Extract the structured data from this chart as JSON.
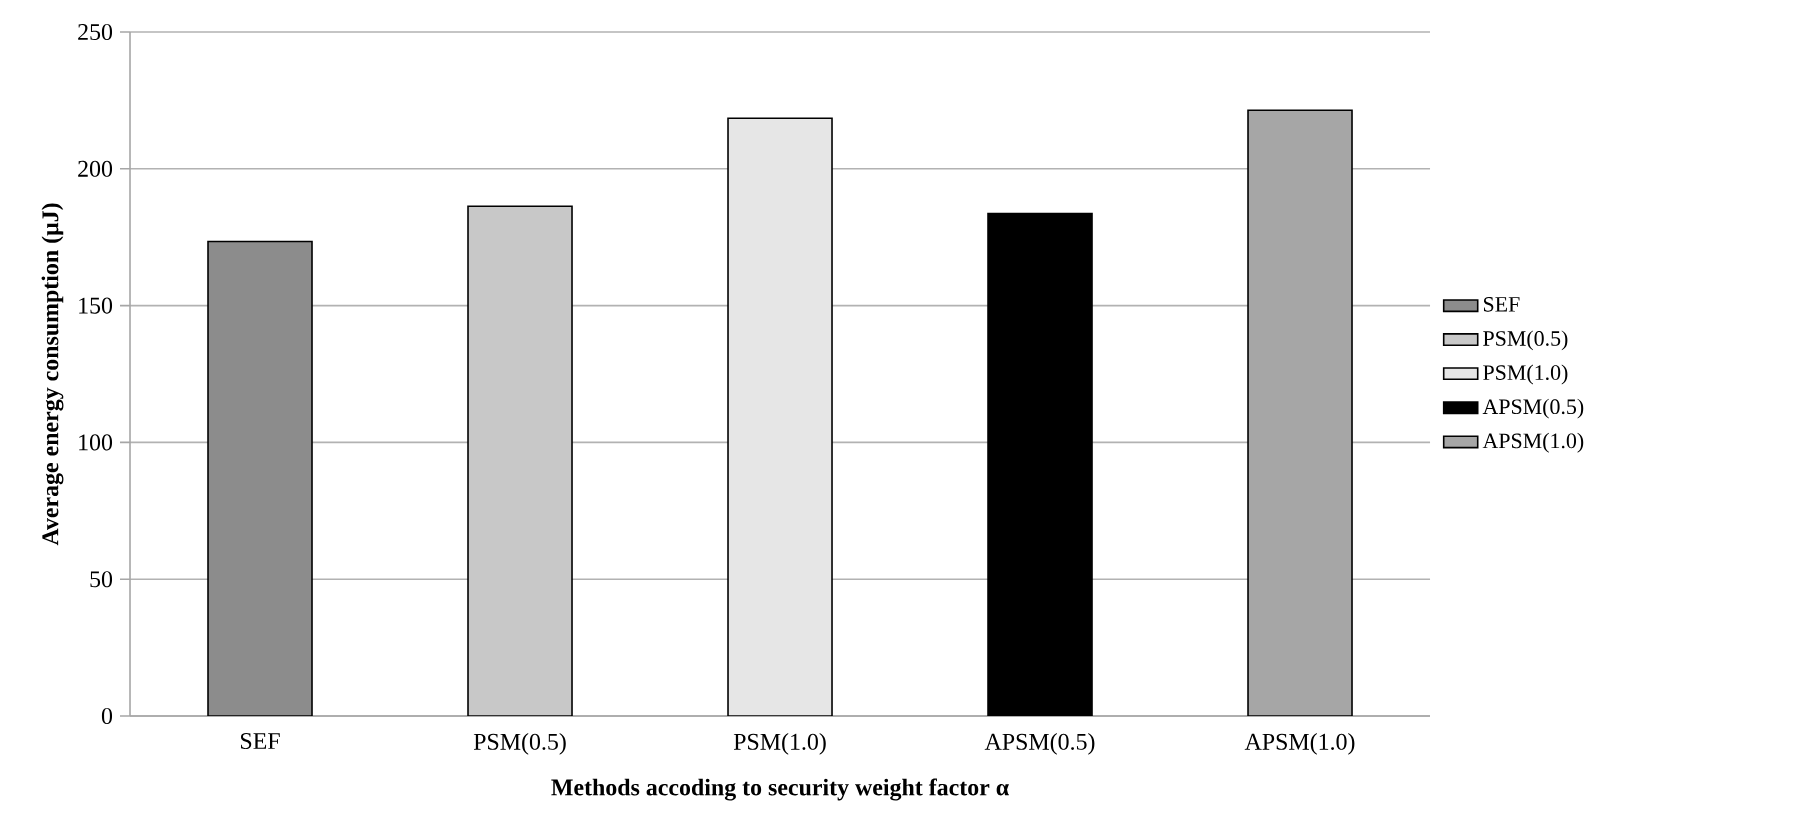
{
  "chart_data": {
    "type": "bar",
    "xlabel": "Methods  accoding  to  security  weight  factor  α",
    "ylabel": "Average  energy  consumption  (μJ)",
    "categories": [
      "SEF",
      "PSM(0.5)",
      "PSM(1.0)",
      "APSM(0.5)",
      "APSM(1.0)"
    ],
    "series": [
      {
        "name": "SEF",
        "color": "#8c8c8c",
        "values": [
          173.4,
          null,
          null,
          null,
          null
        ]
      },
      {
        "name": "PSM(0.5)",
        "color": "#c8c8c8",
        "values": [
          null,
          186.3,
          null,
          null,
          null
        ]
      },
      {
        "name": "PSM(1.0)",
        "color": "#e6e6e6",
        "values": [
          null,
          null,
          218.5,
          null,
          null
        ]
      },
      {
        "name": "APSM(0.5)",
        "color": "#000000",
        "values": [
          null,
          null,
          null,
          183.6,
          null
        ]
      },
      {
        "name": "APSM(1.0)",
        "color": "#a6a6a6",
        "values": [
          null,
          null,
          null,
          null,
          221.4
        ]
      }
    ],
    "ylim": [
      0,
      250
    ],
    "yticks": [
      0,
      50,
      100,
      150,
      200,
      250
    ],
    "grid": "y",
    "legend": "right"
  }
}
